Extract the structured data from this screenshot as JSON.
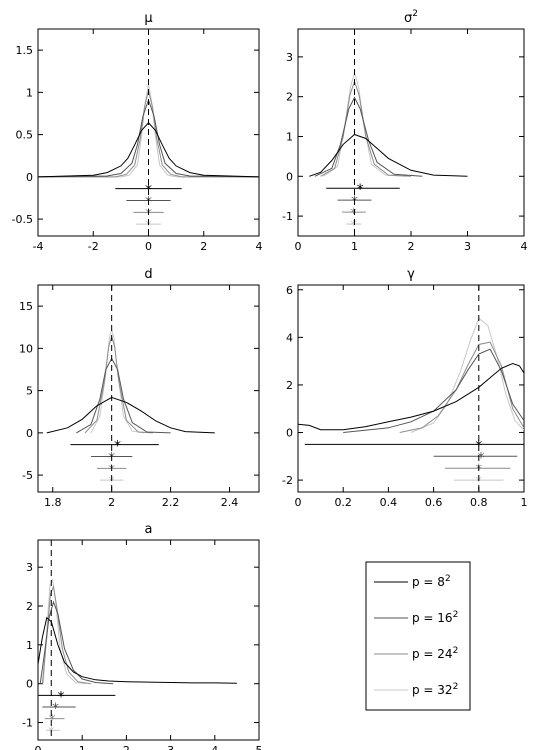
{
  "colors": {
    "series": [
      "#000000",
      "#555555",
      "#8c8c8c",
      "#c8c8c8"
    ],
    "truth_line": "#000000",
    "background": "#ffffff"
  },
  "legend": {
    "placement": "lower-right (separate panel)",
    "entries": [
      {
        "base": "p = 8",
        "sup": "2"
      },
      {
        "base": "p = 16",
        "sup": "2"
      },
      {
        "base": "p = 24",
        "sup": "2"
      },
      {
        "base": "p = 32",
        "sup": "2"
      }
    ]
  },
  "chart_data": [
    {
      "type": "line",
      "title": "μ",
      "title_sup": "",
      "xlim": [
        -4,
        4
      ],
      "ylim": [
        -0.7,
        1.75
      ],
      "xticks": [
        -4,
        -2,
        0,
        2,
        4
      ],
      "yticks": [
        -0.5,
        0,
        0.5,
        1,
        1.5
      ],
      "ytick_labels": [
        "-0.5",
        "0",
        "0.5",
        "1",
        "1.5"
      ],
      "true_value": 0,
      "curves": [
        {
          "x": [
            -4,
            -2,
            -1.5,
            -1,
            -0.75,
            -0.5,
            -0.25,
            0,
            0.25,
            0.5,
            0.75,
            1,
            1.5,
            2,
            4
          ],
          "y": [
            0,
            0.02,
            0.05,
            0.13,
            0.22,
            0.38,
            0.55,
            0.64,
            0.55,
            0.38,
            0.22,
            0.13,
            0.05,
            0.02,
            0
          ]
        },
        {
          "x": [
            -4,
            -1.5,
            -1,
            -0.6,
            -0.4,
            -0.2,
            0,
            0.2,
            0.4,
            0.6,
            1,
            1.5,
            4
          ],
          "y": [
            0,
            0.01,
            0.04,
            0.16,
            0.38,
            0.72,
            0.91,
            0.72,
            0.38,
            0.16,
            0.04,
            0.01,
            0
          ]
        },
        {
          "x": [
            -4,
            -1.2,
            -0.8,
            -0.5,
            -0.3,
            -0.15,
            0,
            0.15,
            0.3,
            0.5,
            0.8,
            1.2,
            4
          ],
          "y": [
            0,
            0,
            0.03,
            0.14,
            0.45,
            0.82,
            1.02,
            0.82,
            0.45,
            0.14,
            0.03,
            0,
            0
          ]
        },
        {
          "x": [
            -4,
            -1,
            -0.7,
            -0.4,
            -0.25,
            -0.12,
            0,
            0.12,
            0.25,
            0.4,
            0.7,
            1,
            4
          ],
          "y": [
            0,
            0,
            0.02,
            0.14,
            0.48,
            0.88,
            1.1,
            0.88,
            0.48,
            0.14,
            0.02,
            0,
            0
          ]
        }
      ],
      "intervals": [
        {
          "y": -0.14,
          "lo": -1.2,
          "hi": 1.2,
          "est": 0.0
        },
        {
          "y": -0.28,
          "lo": -0.8,
          "hi": 0.8,
          "est": 0.0
        },
        {
          "y": -0.42,
          "lo": -0.55,
          "hi": 0.55,
          "est": 0.0
        },
        {
          "y": -0.56,
          "lo": -0.45,
          "hi": 0.45,
          "est": 0.0
        }
      ]
    },
    {
      "type": "line",
      "title": "σ",
      "title_sup": "2",
      "xlim": [
        0,
        4
      ],
      "ylim": [
        -1.5,
        3.7
      ],
      "xticks": [
        0,
        1,
        2,
        3,
        4
      ],
      "yticks": [
        -1,
        0,
        1,
        2,
        3
      ],
      "ytick_labels": [
        "-1",
        "0",
        "1",
        "2",
        "3"
      ],
      "true_value": 1,
      "curves": [
        {
          "x": [
            0.2,
            0.4,
            0.6,
            0.8,
            1.0,
            1.2,
            1.4,
            1.6,
            2.0,
            2.4,
            3.0
          ],
          "y": [
            0,
            0.1,
            0.4,
            0.8,
            1.05,
            0.95,
            0.7,
            0.45,
            0.15,
            0.03,
            0
          ]
        },
        {
          "x": [
            0.3,
            0.6,
            0.75,
            0.9,
            1.0,
            1.1,
            1.25,
            1.4,
            1.7,
            2.2
          ],
          "y": [
            0,
            0.2,
            0.8,
            1.7,
            1.98,
            1.7,
            0.9,
            0.35,
            0.05,
            0
          ]
        },
        {
          "x": [
            0.4,
            0.65,
            0.8,
            0.92,
            1.0,
            1.08,
            1.2,
            1.35,
            1.6,
            2.0
          ],
          "y": [
            0,
            0.2,
            1.0,
            2.05,
            2.38,
            2.05,
            1.0,
            0.3,
            0.03,
            0
          ]
        },
        {
          "x": [
            0.45,
            0.7,
            0.82,
            0.93,
            1.0,
            1.07,
            1.18,
            1.3,
            1.55,
            1.9
          ],
          "y": [
            0,
            0.25,
            1.2,
            2.25,
            2.6,
            2.25,
            1.2,
            0.3,
            0.03,
            0
          ]
        }
      ],
      "intervals": [
        {
          "y": -0.3,
          "lo": 0.5,
          "hi": 1.8,
          "est": 1.1
        },
        {
          "y": -0.6,
          "lo": 0.7,
          "hi": 1.3,
          "est": 1.0
        },
        {
          "y": -0.9,
          "lo": 0.78,
          "hi": 1.2,
          "est": 0.98
        },
        {
          "y": -1.2,
          "lo": 0.85,
          "hi": 1.12,
          "est": 0.98
        }
      ]
    },
    {
      "type": "line",
      "title": "d",
      "title_sup": "",
      "xlim": [
        1.75,
        2.5
      ],
      "ylim": [
        -7,
        17.5
      ],
      "xticks": [
        1.8,
        2.0,
        2.2,
        2.4
      ],
      "xtick_labels": [
        "1.8",
        "2",
        "2.2",
        "2.4"
      ],
      "yticks": [
        -5,
        0,
        5,
        10,
        15
      ],
      "ytick_labels": [
        "-5",
        "0",
        "5",
        "10",
        "15"
      ],
      "true_value": 2,
      "curves": [
        {
          "x": [
            1.78,
            1.85,
            1.9,
            1.95,
            2.0,
            2.05,
            2.1,
            2.15,
            2.2,
            2.25,
            2.35
          ],
          "y": [
            0,
            0.6,
            1.6,
            3.2,
            4.2,
            3.6,
            2.6,
            1.4,
            0.6,
            0.15,
            0
          ]
        },
        {
          "x": [
            1.88,
            1.93,
            1.96,
            1.98,
            2.0,
            2.02,
            2.04,
            2.07,
            2.12,
            2.2
          ],
          "y": [
            0,
            1.0,
            4.0,
            7.5,
            8.8,
            7.5,
            4.0,
            1.2,
            0.1,
            0
          ]
        },
        {
          "x": [
            1.91,
            1.95,
            1.975,
            1.99,
            2.0,
            2.01,
            2.025,
            2.05,
            2.09,
            2.14
          ],
          "y": [
            0,
            1.5,
            6.0,
            10.2,
            11.4,
            10.2,
            6.0,
            1.5,
            0.1,
            0
          ]
        },
        {
          "x": [
            1.93,
            1.96,
            1.98,
            1.992,
            2.0,
            2.008,
            2.02,
            2.04,
            2.07,
            2.11
          ],
          "y": [
            0,
            2.0,
            7.0,
            11.2,
            12.2,
            11.2,
            7.0,
            2.0,
            0.2,
            0
          ]
        }
      ],
      "intervals": [
        {
          "y": -1.4,
          "lo": 1.86,
          "hi": 2.16,
          "est": 2.02
        },
        {
          "y": -2.8,
          "lo": 1.93,
          "hi": 2.07,
          "est": 2.0
        },
        {
          "y": -4.2,
          "lo": 1.95,
          "hi": 2.05,
          "est": 2.0
        },
        {
          "y": -5.6,
          "lo": 1.96,
          "hi": 2.04,
          "est": 2.0
        }
      ]
    },
    {
      "type": "line",
      "title": "γ",
      "title_sup": "",
      "xlim": [
        0,
        1
      ],
      "ylim": [
        -2.5,
        6.2
      ],
      "xticks": [
        0,
        0.2,
        0.4,
        0.6,
        0.8,
        1
      ],
      "yticks": [
        -2,
        0,
        2,
        4,
        6
      ],
      "ytick_labels": [
        "-2",
        "0",
        "2",
        "4",
        "6"
      ],
      "true_value": 0.8,
      "curves": [
        {
          "x": [
            0,
            0.05,
            0.1,
            0.2,
            0.3,
            0.4,
            0.5,
            0.6,
            0.7,
            0.8,
            0.85,
            0.9,
            0.95,
            0.98,
            1.0
          ],
          "y": [
            0.35,
            0.3,
            0.12,
            0.12,
            0.25,
            0.45,
            0.65,
            0.9,
            1.3,
            1.9,
            2.3,
            2.7,
            2.9,
            2.8,
            2.5
          ]
        },
        {
          "x": [
            0.2,
            0.4,
            0.5,
            0.6,
            0.7,
            0.75,
            0.8,
            0.85,
            0.9,
            0.95,
            1.0
          ],
          "y": [
            0,
            0.2,
            0.45,
            0.9,
            1.8,
            2.6,
            3.3,
            3.5,
            2.6,
            1.2,
            0.5
          ]
        },
        {
          "x": [
            0.45,
            0.55,
            0.62,
            0.7,
            0.75,
            0.8,
            0.85,
            0.9,
            0.95,
            1.0
          ],
          "y": [
            0,
            0.2,
            0.7,
            1.8,
            2.8,
            3.7,
            3.8,
            2.8,
            1.0,
            0.2
          ]
        },
        {
          "x": [
            0.5,
            0.6,
            0.66,
            0.72,
            0.76,
            0.8,
            0.84,
            0.88,
            0.92,
            0.96,
            1.0
          ],
          "y": [
            0,
            0.4,
            1.2,
            2.6,
            3.8,
            4.8,
            4.5,
            3.2,
            1.6,
            0.5,
            0.1
          ]
        }
      ],
      "intervals": [
        {
          "y": -0.5,
          "lo": 0.03,
          "hi": 1.0,
          "est": 0.8
        },
        {
          "y": -1.0,
          "lo": 0.6,
          "hi": 0.97,
          "est": 0.81
        },
        {
          "y": -1.5,
          "lo": 0.65,
          "hi": 0.94,
          "est": 0.8
        },
        {
          "y": -2.0,
          "lo": 0.69,
          "hi": 0.91,
          "est": 0.8
        }
      ]
    },
    {
      "type": "line",
      "title": "a",
      "title_sup": "",
      "xlim": [
        0,
        5
      ],
      "ylim": [
        -1.45,
        3.7
      ],
      "xticks": [
        0,
        1,
        2,
        3,
        4,
        5
      ],
      "yticks": [
        -1,
        0,
        1,
        2,
        3
      ],
      "ytick_labels": [
        "-1",
        "0",
        "1",
        "2",
        "3"
      ],
      "true_value": 0.3,
      "curves": [
        {
          "x": [
            0.0,
            0.1,
            0.2,
            0.3,
            0.45,
            0.6,
            0.8,
            1.0,
            1.3,
            1.6,
            2.0,
            2.5,
            3.0,
            3.5,
            4.0,
            4.5
          ],
          "y": [
            0.5,
            1.2,
            1.7,
            1.6,
            1.0,
            0.55,
            0.3,
            0.18,
            0.1,
            0.07,
            0.05,
            0.04,
            0.03,
            0.02,
            0.02,
            0.01
          ]
        },
        {
          "x": [
            0.05,
            0.15,
            0.25,
            0.35,
            0.45,
            0.6,
            0.8,
            1.0,
            1.3,
            1.7
          ],
          "y": [
            0,
            0.8,
            1.7,
            2.1,
            1.8,
            0.9,
            0.35,
            0.12,
            0.03,
            0
          ]
        },
        {
          "x": [
            0.1,
            0.2,
            0.28,
            0.35,
            0.42,
            0.55,
            0.7,
            0.9,
            1.2
          ],
          "y": [
            0,
            1.2,
            2.3,
            2.5,
            2.0,
            0.9,
            0.3,
            0.05,
            0
          ]
        },
        {
          "x": [
            0.12,
            0.2,
            0.27,
            0.33,
            0.4,
            0.5,
            0.65,
            0.85,
            1.1
          ],
          "y": [
            0,
            1.4,
            2.5,
            2.68,
            2.1,
            0.9,
            0.25,
            0.03,
            0
          ]
        }
      ],
      "intervals": [
        {
          "y": -0.3,
          "lo": 0.0,
          "hi": 1.75,
          "est": 0.52
        },
        {
          "y": -0.6,
          "lo": 0.1,
          "hi": 0.85,
          "est": 0.4
        },
        {
          "y": -0.9,
          "lo": 0.15,
          "hi": 0.6,
          "est": 0.32
        },
        {
          "y": -1.2,
          "lo": 0.18,
          "hi": 0.5,
          "est": 0.3
        }
      ]
    }
  ]
}
